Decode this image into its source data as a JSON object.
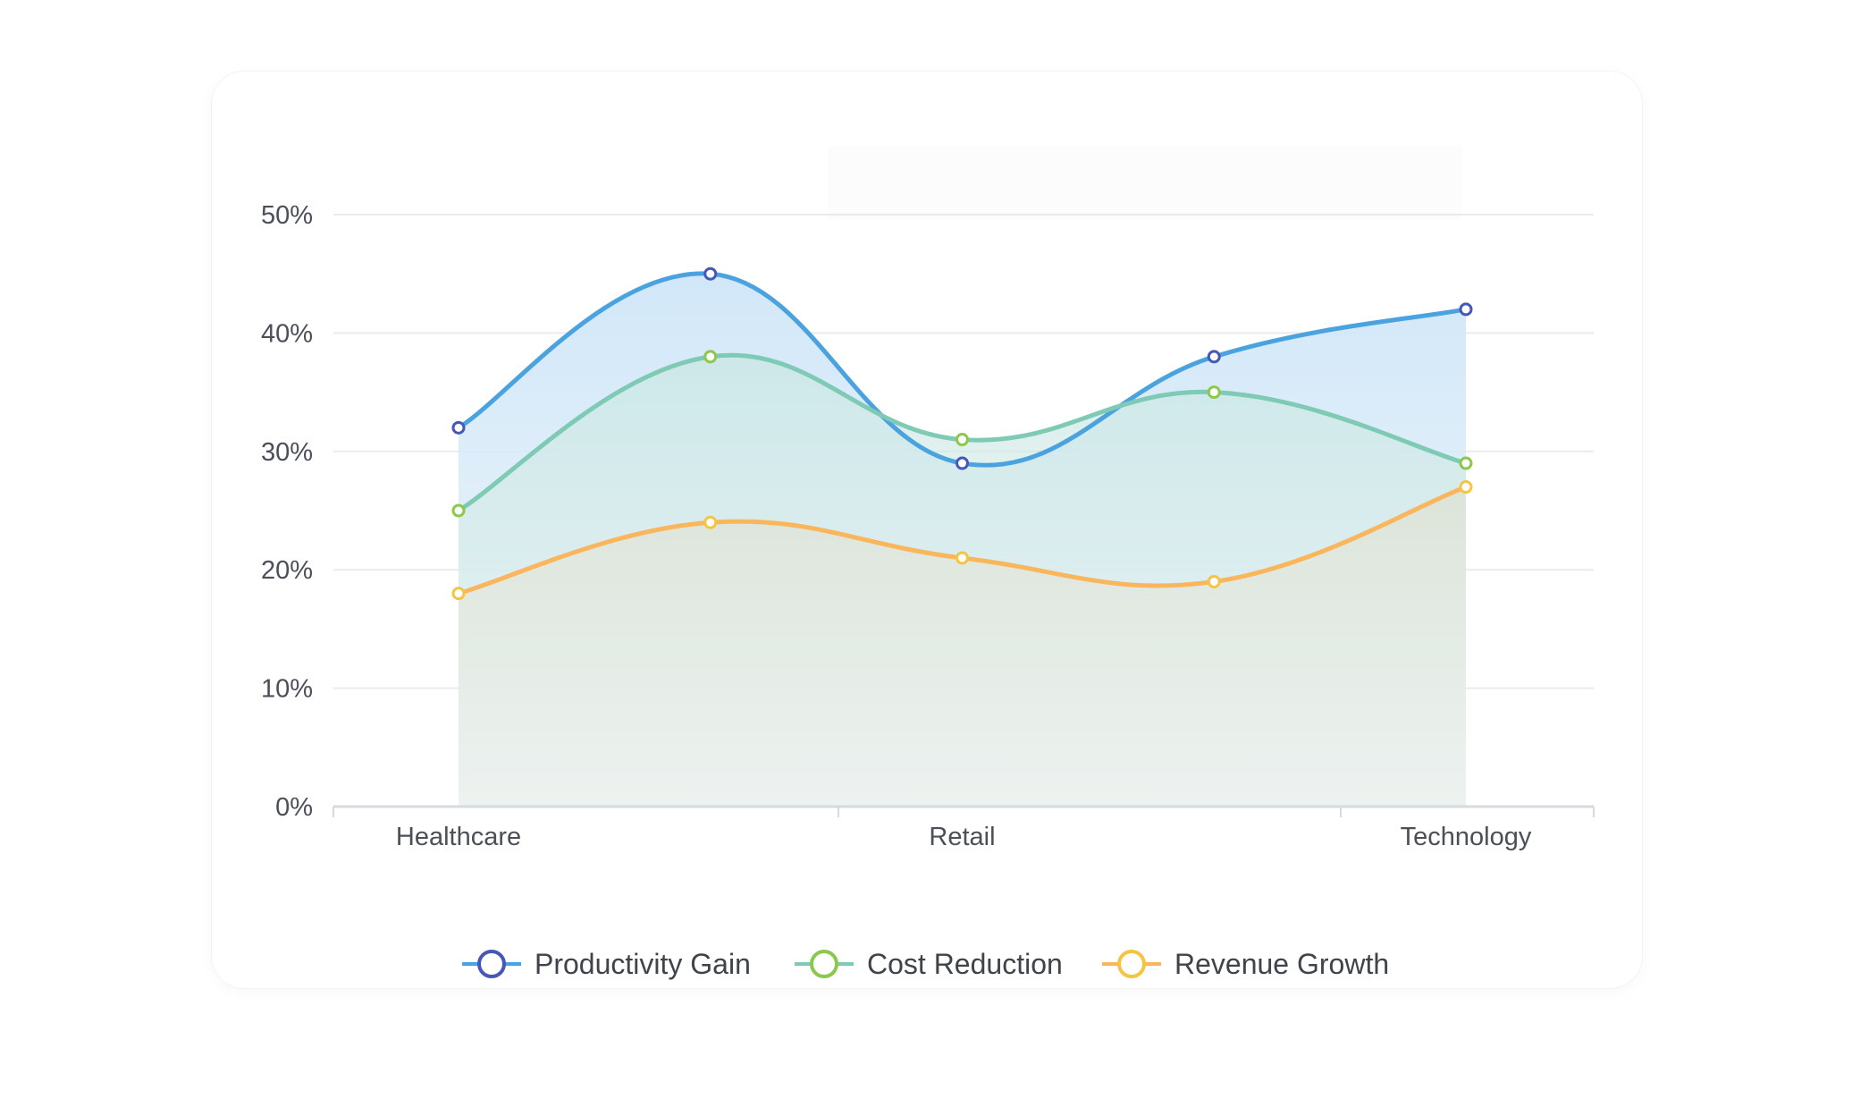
{
  "chart_data": {
    "type": "area",
    "categories": [
      "Healthcare",
      "",
      "Retail",
      "",
      "Technology"
    ],
    "series": [
      {
        "name": "Productivity Gain",
        "values": [
          32,
          45,
          29,
          38,
          42
        ],
        "color": "#4aa3df",
        "marker": "#4558b8"
      },
      {
        "name": "Cost Reduction",
        "values": [
          25,
          38,
          31,
          35,
          29
        ],
        "color": "#7fcab5",
        "marker": "#8cc84b"
      },
      {
        "name": "Revenue Growth",
        "values": [
          18,
          24,
          21,
          19,
          27
        ],
        "color": "#f9b65c",
        "marker": "#f5c542"
      }
    ],
    "ylim": [
      0,
      50
    ],
    "yticks": [
      "0%",
      "10%",
      "20%",
      "30%",
      "40%",
      "50%"
    ],
    "grid": true,
    "legend_position": "bottom",
    "area_colors": {
      "productivity": "#d6eaf8",
      "cost": "#cde8e4",
      "revenue": "#e3e8dc"
    }
  }
}
